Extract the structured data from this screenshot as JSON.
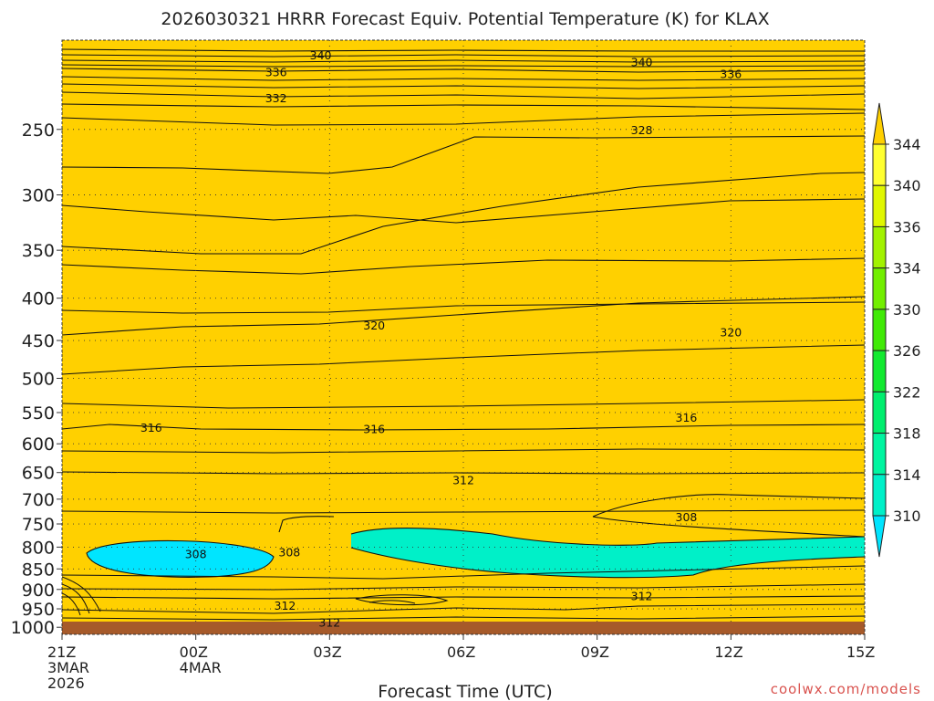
{
  "chart_data": {
    "type": "heatmap",
    "title": "2026030321 HRRR Forecast Equiv. Potential Temperature (K) for KLAX",
    "xlabel": "Forecast Time (UTC)",
    "ylabel": "",
    "credit": "coolwx.com/models",
    "x_ticks": [
      {
        "hour": 0,
        "label": "21Z",
        "sub": [
          "3MAR",
          "2026"
        ]
      },
      {
        "hour": 3,
        "label": "00Z",
        "sub": [
          "4MAR"
        ]
      },
      {
        "hour": 6,
        "label": "03Z",
        "sub": []
      },
      {
        "hour": 9,
        "label": "06Z",
        "sub": []
      },
      {
        "hour": 12,
        "label": "09Z",
        "sub": []
      },
      {
        "hour": 15,
        "label": "12Z",
        "sub": []
      },
      {
        "hour": 18,
        "label": "15Z",
        "sub": []
      }
    ],
    "xlim": [
      0,
      18
    ],
    "y_ticks": [
      250,
      300,
      350,
      400,
      450,
      500,
      550,
      600,
      650,
      700,
      750,
      800,
      850,
      900,
      950,
      1000
    ],
    "ylim": [
      1020,
      195
    ],
    "y_scale": "log-pressure",
    "grid": true,
    "colorbar": {
      "levels": [
        310,
        314,
        318,
        322,
        326,
        330,
        334,
        336,
        340,
        344
      ],
      "colors": [
        "#00e5ff",
        "#00f0c8",
        "#00f5a0",
        "#00ef6e",
        "#12ea30",
        "#40ea06",
        "#72ef00",
        "#a2f200",
        "#e0f700",
        "#ffff30",
        "#ffd000"
      ],
      "extend": "both"
    },
    "ground_color": "#a65a2a",
    "contour_labels": [
      {
        "value": "340",
        "hour": 5.8,
        "p": 203
      },
      {
        "value": "340",
        "hour": 13.0,
        "p": 207
      },
      {
        "value": "336",
        "hour": 4.8,
        "p": 213
      },
      {
        "value": "336",
        "hour": 15.0,
        "p": 214
      },
      {
        "value": "332",
        "hour": 4.8,
        "p": 229
      },
      {
        "value": "328",
        "hour": 13.0,
        "p": 250
      },
      {
        "value": "320",
        "hour": 7.0,
        "p": 431
      },
      {
        "value": "320",
        "hour": 15.0,
        "p": 439
      },
      {
        "value": "316",
        "hour": 2.0,
        "p": 573
      },
      {
        "value": "316",
        "hour": 7.0,
        "p": 575
      },
      {
        "value": "316",
        "hour": 14.0,
        "p": 557
      },
      {
        "value": "312",
        "hour": 9.0,
        "p": 663
      },
      {
        "value": "308",
        "hour": 14.0,
        "p": 735
      },
      {
        "value": "308",
        "hour": 3.0,
        "p": 815
      },
      {
        "value": "308",
        "hour": 5.1,
        "p": 810
      },
      {
        "value": "312",
        "hour": 13.0,
        "p": 915
      },
      {
        "value": "312",
        "hour": 5.0,
        "p": 940
      },
      {
        "value": "312",
        "hour": 6.0,
        "p": 985
      }
    ]
  }
}
